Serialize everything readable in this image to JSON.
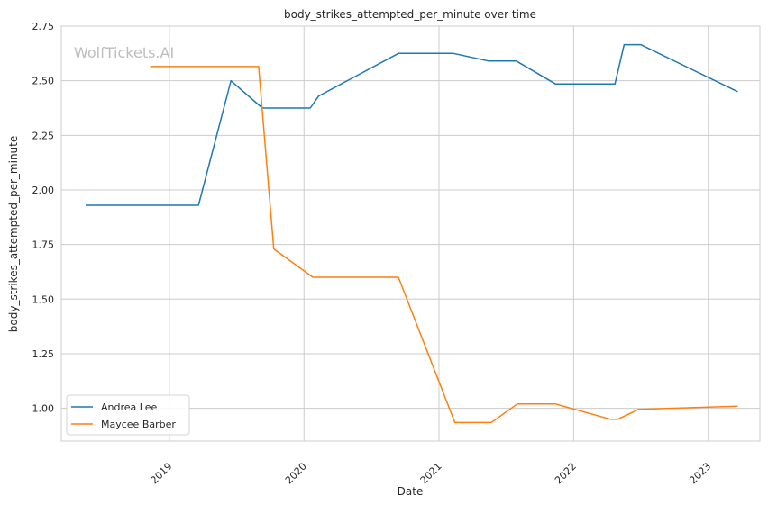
{
  "chart_data": {
    "type": "line",
    "title": "body_strikes_attempted_per_minute over time",
    "xlabel": "Date",
    "ylabel": "body_strikes_attempted_per_minute",
    "watermark": "WolfTickets.AI",
    "x_ticks": [
      "2019",
      "2020",
      "2021",
      "2022",
      "2023"
    ],
    "y_ticks": [
      "1.00",
      "1.25",
      "1.50",
      "1.75",
      "2.00",
      "2.25",
      "2.50",
      "2.75"
    ],
    "xlim": [
      "2018-03-14",
      "2023-05-21"
    ],
    "ylim": [
      0.85,
      2.75
    ],
    "grid": true,
    "legend_position": "lower-left",
    "series": [
      {
        "name": "Andrea Lee",
        "color": "#1f77b4",
        "points": [
          [
            "2018-05-19",
            1.93
          ],
          [
            "2019-03-21",
            1.93
          ],
          [
            "2019-06-17",
            2.5
          ],
          [
            "2019-09-10",
            2.375
          ],
          [
            "2020-01-18",
            2.375
          ],
          [
            "2020-02-10",
            2.43
          ],
          [
            "2020-09-13",
            2.625
          ],
          [
            "2021-02-09",
            2.625
          ],
          [
            "2021-05-16",
            2.59
          ],
          [
            "2021-07-30",
            2.59
          ],
          [
            "2021-11-13",
            2.485
          ],
          [
            "2022-04-23",
            2.485
          ],
          [
            "2022-05-18",
            2.665
          ],
          [
            "2022-07-02",
            2.665
          ],
          [
            "2023-03-22",
            2.45
          ]
        ]
      },
      {
        "name": "Maycee Barber",
        "color": "#ff7f0e",
        "points": [
          [
            "2018-11-10",
            2.565
          ],
          [
            "2019-08-31",
            2.565
          ],
          [
            "2019-10-11",
            1.73
          ],
          [
            "2020-01-25",
            1.6
          ],
          [
            "2020-09-13",
            1.6
          ],
          [
            "2021-02-13",
            0.935
          ],
          [
            "2021-05-23",
            0.935
          ],
          [
            "2021-08-01",
            1.02
          ],
          [
            "2021-11-13",
            1.02
          ],
          [
            "2022-04-10",
            0.95
          ],
          [
            "2022-05-01",
            0.95
          ],
          [
            "2022-06-26",
            0.995
          ],
          [
            "2023-03-22",
            1.01
          ]
        ]
      }
    ]
  }
}
